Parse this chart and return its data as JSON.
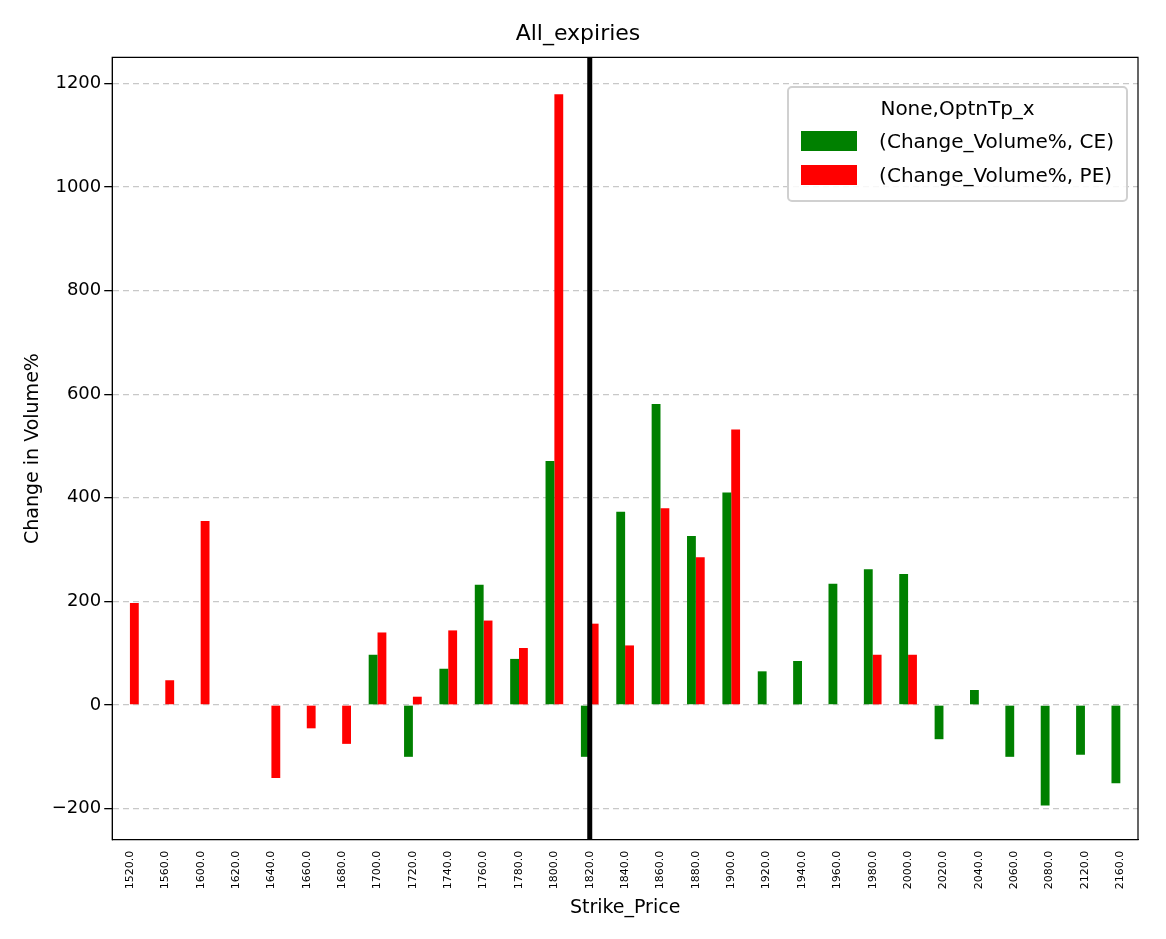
{
  "chart_data": {
    "type": "bar",
    "title": "All_expiries",
    "xlabel": "Strike_Price",
    "ylabel": "Change in Volume%",
    "legend_title": "None,OptnTp_x",
    "categories": [
      "1520.0",
      "1560.0",
      "1600.0",
      "1620.0",
      "1640.0",
      "1660.0",
      "1680.0",
      "1700.0",
      "1720.0",
      "1740.0",
      "1760.0",
      "1780.0",
      "1800.0",
      "1820.0",
      "1840.0",
      "1860.0",
      "1880.0",
      "1900.0",
      "1920.0",
      "1940.0",
      "1960.0",
      "1980.0",
      "2000.0",
      "2020.0",
      "2040.0",
      "2060.0",
      "2080.0",
      "2120.0",
      "2160.0"
    ],
    "series": [
      {
        "name": "(Change_Volume%, CE)",
        "color": "#008000",
        "values": [
          null,
          null,
          null,
          null,
          null,
          null,
          null,
          97,
          -100,
          70,
          232,
          89,
          471,
          -100,
          373,
          581,
          326,
          410,
          65,
          85,
          234,
          262,
          253,
          -66,
          29,
          -100,
          -194,
          -96,
          -151
        ]
      },
      {
        "name": "(Change_Volume%, PE)",
        "color": "#ff0000",
        "values": [
          197,
          48,
          355,
          null,
          -141,
          -45,
          -75,
          140,
          16,
          144,
          163,
          110,
          1179,
          157,
          115,
          380,
          285,
          532,
          null,
          null,
          null,
          97,
          97,
          null,
          null,
          null,
          null,
          null,
          null
        ]
      }
    ],
    "ylim": [
      -260,
      1250
    ],
    "yticks": [
      -200,
      0,
      200,
      400,
      600,
      800,
      1000,
      1200
    ],
    "grid": "y",
    "legend": "top right",
    "ref_lines": [
      {
        "axis": "x",
        "value": "1820.0",
        "color": "#000000"
      }
    ]
  }
}
